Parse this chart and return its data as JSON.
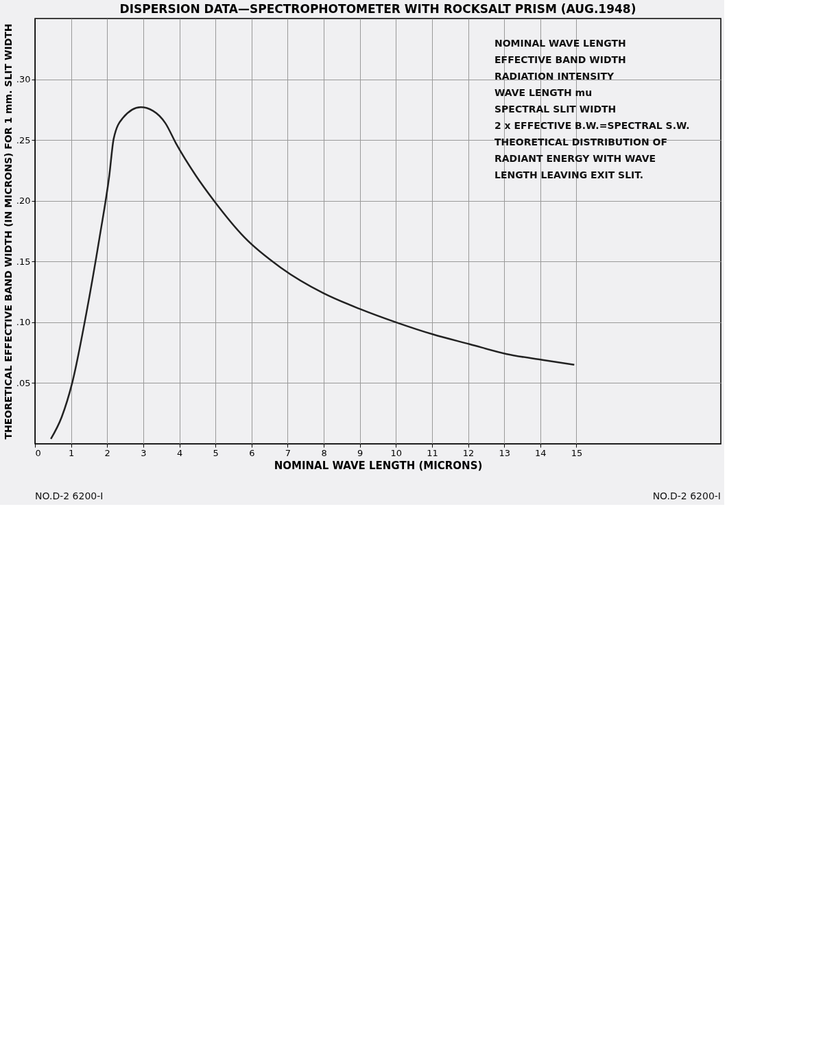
{
  "chart_data": {
    "type": "line",
    "title": "DISPERSION DATA—SPECTROPHOTOMETER WITH ROCKSALT PRISM (AUG.1948)",
    "xlabel": "NOMINAL WAVE LENGTH (MICRONS)",
    "ylabel": "THEORETICAL EFFECTIVE BAND WIDTH (IN MICRONS) FOR 1 mm. SLIT WIDTH",
    "x": [
      0.44,
      0.74,
      1.03,
      1.42,
      1.79,
      2.06,
      2.18,
      2.43,
      2.93,
      3.27,
      3.61,
      3.91,
      4.45,
      4.96,
      5.8,
      6.81,
      7.99,
      9.0,
      10.0,
      11.03,
      12.04,
      13.05,
      14.06,
      14.94
    ],
    "series": [
      {
        "color": "#222222",
        "values": [
          0.004,
          0.022,
          0.05,
          0.107,
          0.17,
          0.221,
          0.251,
          0.268,
          0.277,
          0.274,
          0.264,
          0.247,
          0.221,
          0.2,
          0.17,
          0.145,
          0.124,
          0.111,
          0.1,
          0.09,
          0.082,
          0.074,
          0.069,
          0.065
        ]
      }
    ],
    "xlim": [
      0,
      19
    ],
    "xticks": [
      0,
      1,
      2,
      3,
      4,
      5,
      6,
      7,
      8,
      9,
      10,
      11,
      12,
      13,
      14,
      15
    ],
    "ylim": [
      0,
      0.35
    ],
    "yticks": [
      {
        "value": 0.05,
        "label": ".05"
      },
      {
        "value": 0.1,
        "label": ".10"
      },
      {
        "value": 0.15,
        "label": ".15"
      },
      {
        "value": 0.2,
        "label": ".20"
      },
      {
        "value": 0.25,
        "label": ".25"
      },
      {
        "value": 0.3,
        "label": ".30"
      }
    ],
    "grid": true,
    "marker": "none",
    "line_style": "solid",
    "annotations": [
      "NOMINAL WAVE LENGTH",
      "EFFECTIVE BAND WIDTH",
      "RADIATION INTENSITY",
      "WAVE LENGTH mu",
      "SPECTRAL SLIT WIDTH",
      "2 x EFFECTIVE B.W.=SPECTRAL S.W.",
      "THEORETICAL DISTRIBUTION OF",
      "RADIANT ENERGY WITH WAVE",
      "LENGTH LEAVING EXIT SLIT.",
      "NO.D-2 6200-I",
      "NO.D-2 6200-I"
    ]
  }
}
